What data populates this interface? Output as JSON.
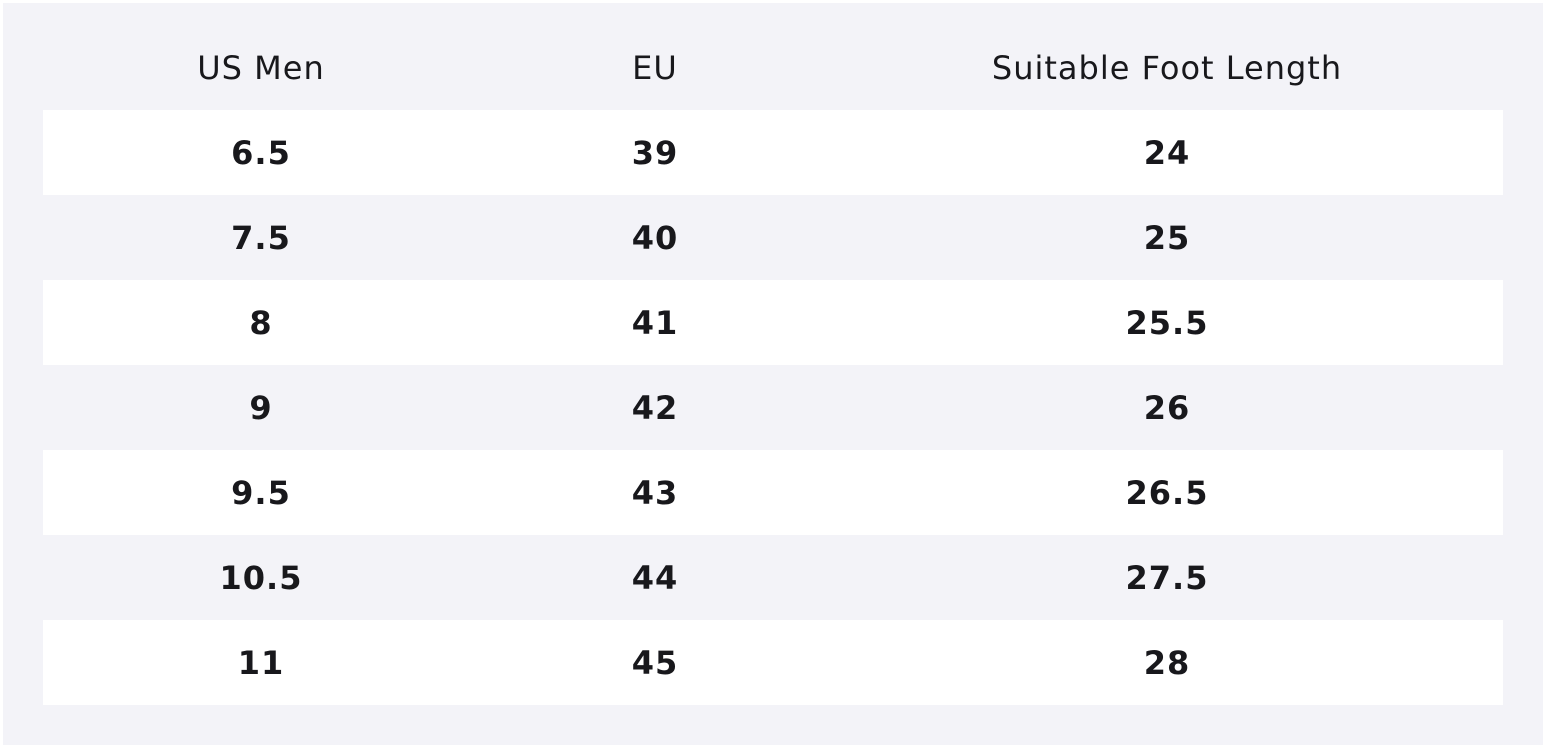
{
  "table": {
    "headers": [
      "US Men",
      "EU",
      "Suitable Foot Length"
    ],
    "rows": [
      [
        "6.5",
        "39",
        "24"
      ],
      [
        "7.5",
        "40",
        "25"
      ],
      [
        "8",
        "41",
        "25.5"
      ],
      [
        "9",
        "42",
        "26"
      ],
      [
        "9.5",
        "43",
        "26.5"
      ],
      [
        "10.5",
        "44",
        "27.5"
      ],
      [
        "11",
        "45",
        "28"
      ]
    ]
  }
}
